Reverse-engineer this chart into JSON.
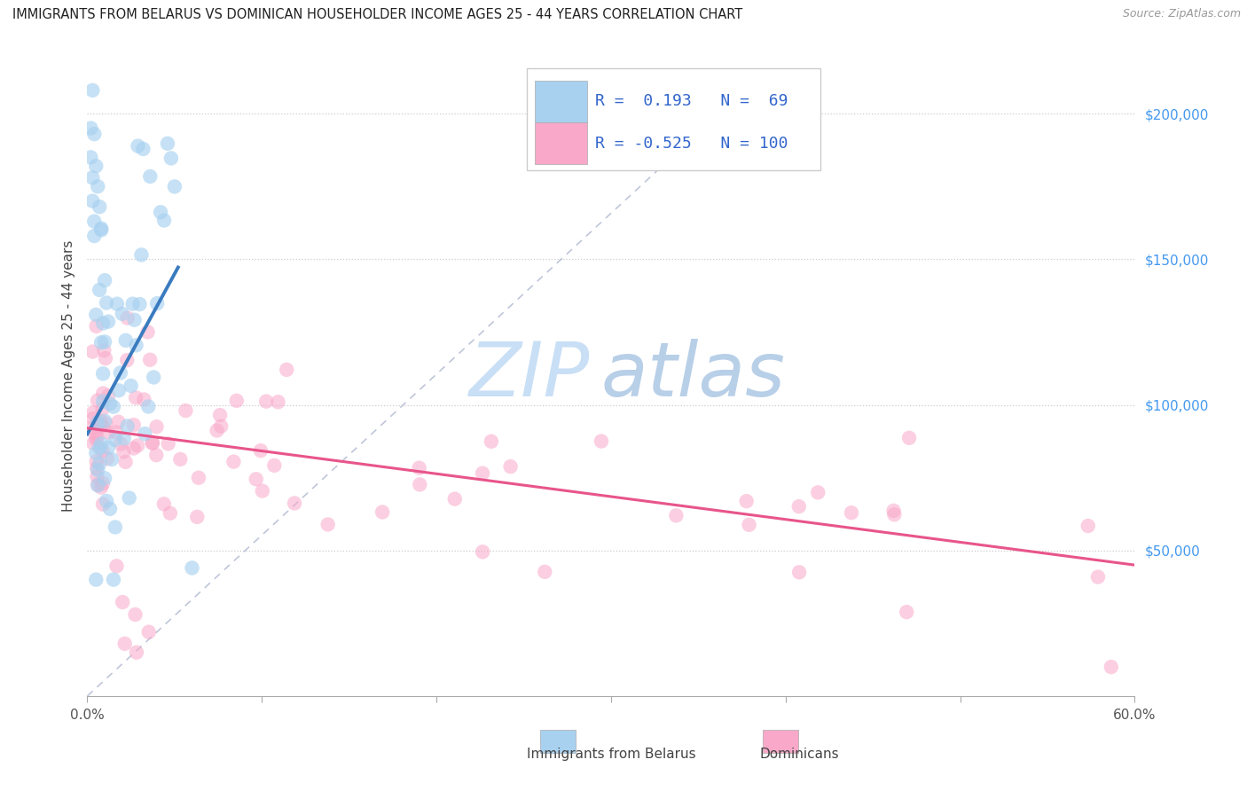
{
  "title": "IMMIGRANTS FROM BELARUS VS DOMINICAN HOUSEHOLDER INCOME AGES 25 - 44 YEARS CORRELATION CHART",
  "source": "Source: ZipAtlas.com",
  "ylabel": "Householder Income Ages 25 - 44 years",
  "xlim": [
    0.0,
    0.6
  ],
  "ylim": [
    0,
    220000
  ],
  "xtick_vals": [
    0.0,
    0.1,
    0.2,
    0.3,
    0.4,
    0.5,
    0.6
  ],
  "xtick_labels_show": [
    "0.0%",
    "",
    "",
    "",
    "",
    "",
    "60.0%"
  ],
  "ytick_vals": [
    50000,
    100000,
    150000,
    200000
  ],
  "ytick_labels": [
    "$50,000",
    "$100,000",
    "$150,000",
    "$200,000"
  ],
  "belarus_R": 0.193,
  "belarus_N": 69,
  "dominican_R": -0.525,
  "dominican_N": 100,
  "belarus_color": "#a8d1f0",
  "dominican_color": "#f9a8c9",
  "belarus_line_color": "#3a7bbf",
  "dominican_line_color": "#e8558a",
  "diag_line_color": "#b0b8d0",
  "ytick_color": "#4499ee",
  "watermark_color": "#c8dff5",
  "legend_text_color": "#3366cc"
}
